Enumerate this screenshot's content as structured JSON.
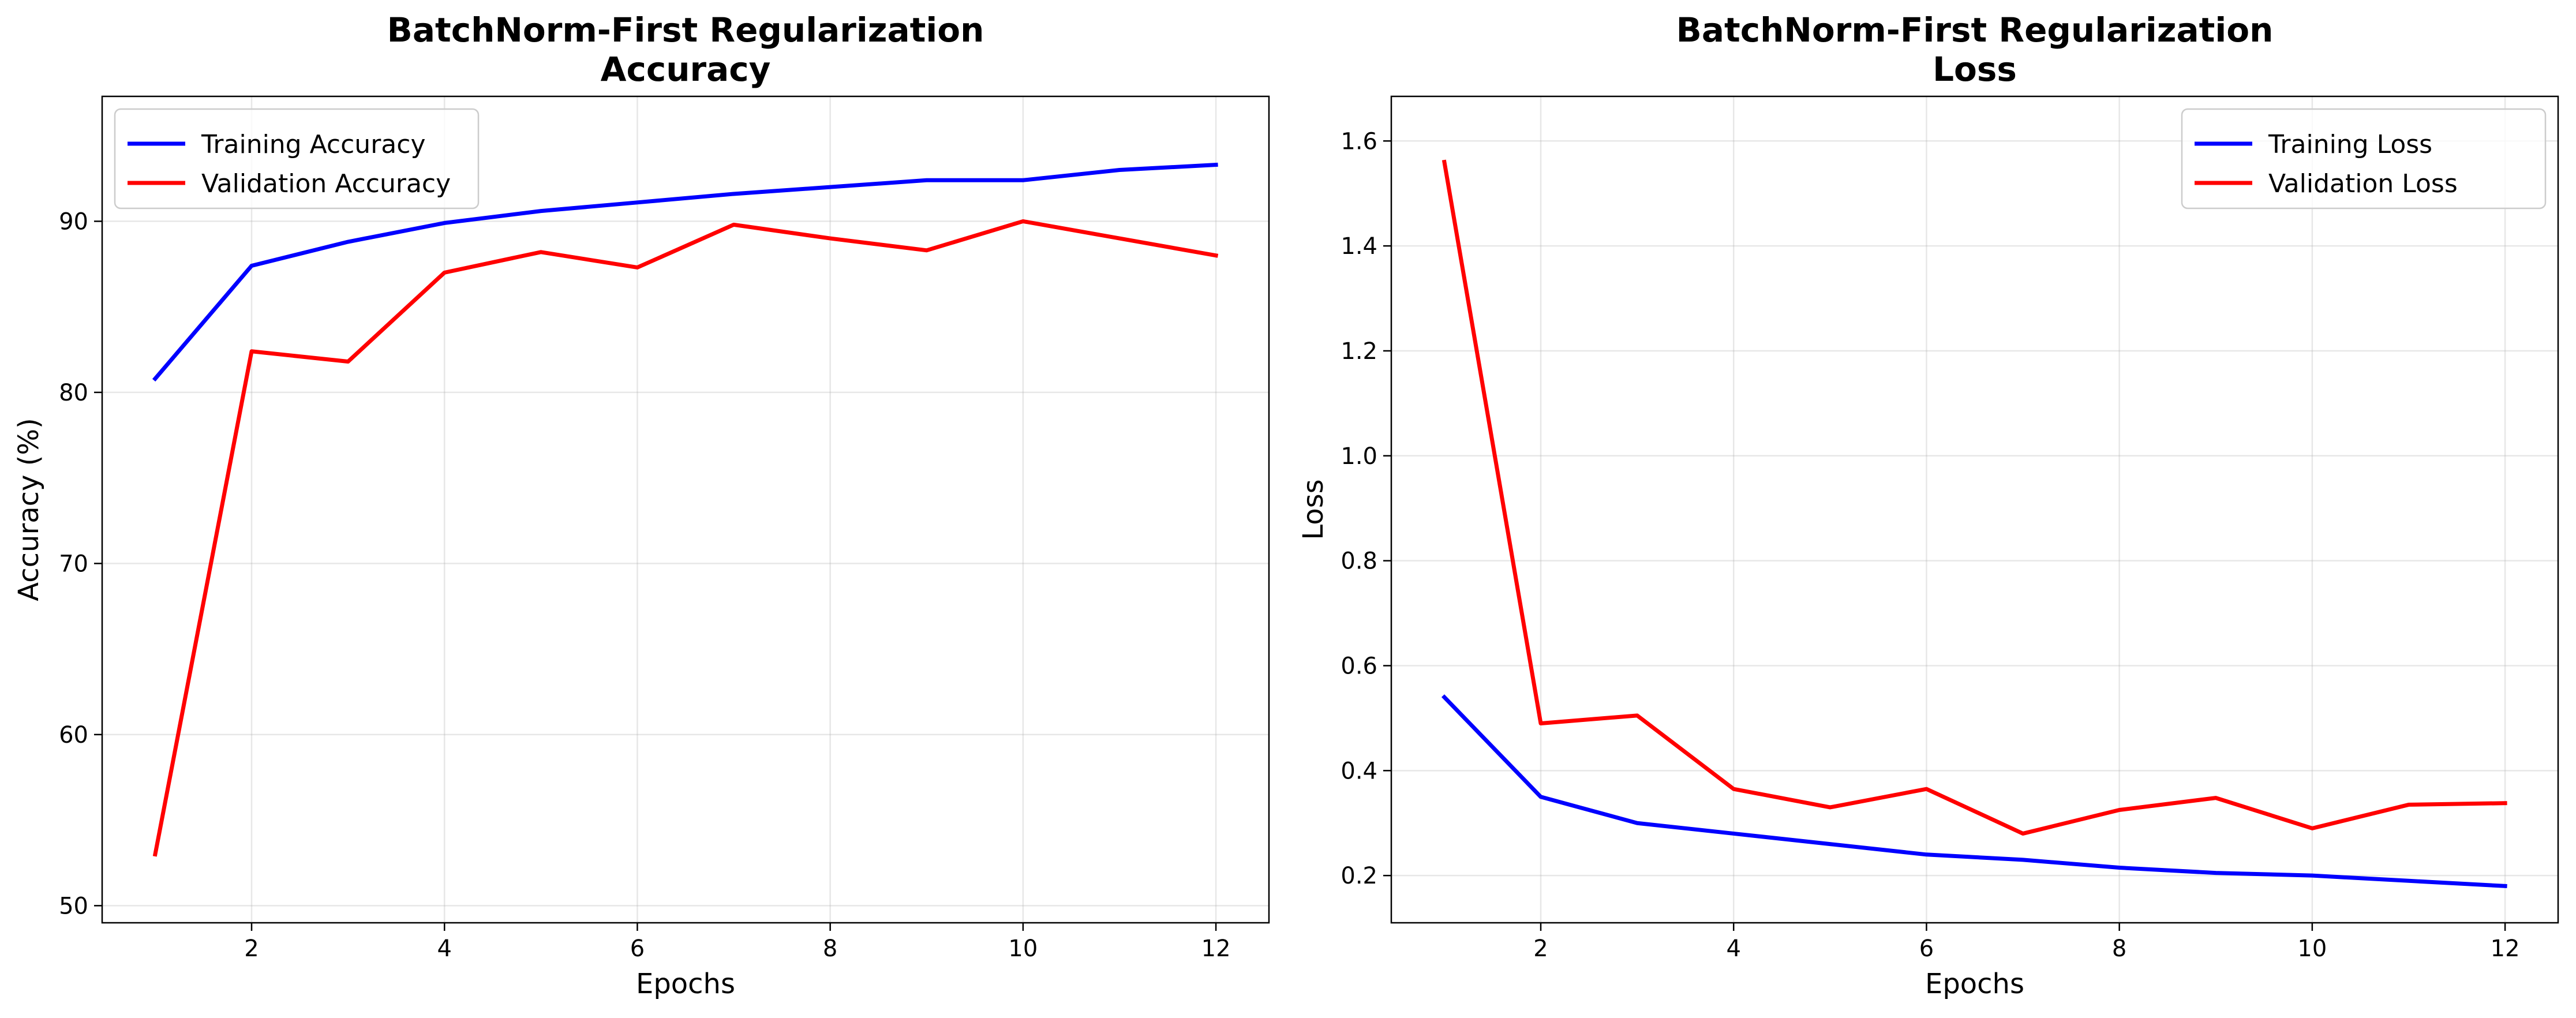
{
  "chart_data": [
    {
      "type": "line",
      "title": "BatchNorm-First Regularization\nAccuracy",
      "xlabel": "Epochs",
      "ylabel": "Accuracy (%)",
      "x": [
        1,
        2,
        3,
        4,
        5,
        6,
        7,
        8,
        9,
        10,
        11,
        12
      ],
      "xlim": [
        0.45,
        12.55
      ],
      "ylim": [
        49.0,
        97.3
      ],
      "xticks": [
        2,
        4,
        6,
        8,
        10,
        12
      ],
      "yticks": [
        50,
        60,
        70,
        80,
        90
      ],
      "xtick_labels": [
        "2",
        "4",
        "6",
        "8",
        "10",
        "12"
      ],
      "ytick_labels": [
        "50",
        "60",
        "70",
        "80",
        "90"
      ],
      "grid": true,
      "legend_loc": "upper left",
      "series": [
        {
          "name": "Training Accuracy",
          "color": "#0000ff",
          "values": [
            80.8,
            87.4,
            88.8,
            89.9,
            90.6,
            91.1,
            91.6,
            92.0,
            92.4,
            92.4,
            93.0,
            93.3
          ]
        },
        {
          "name": "Validation Accuracy",
          "color": "#ff0000",
          "values": [
            53.0,
            82.4,
            81.8,
            87.0,
            88.2,
            87.3,
            89.8,
            89.0,
            88.3,
            90.0,
            89.0,
            88.0
          ]
        }
      ]
    },
    {
      "type": "line",
      "title": "BatchNorm-First Regularization\nLoss",
      "xlabel": "Epochs",
      "ylabel": "Loss",
      "x": [
        1,
        2,
        3,
        4,
        5,
        6,
        7,
        8,
        9,
        10,
        11,
        12
      ],
      "xlim": [
        0.45,
        12.55
      ],
      "ylim": [
        0.11,
        1.685
      ],
      "xticks": [
        2,
        4,
        6,
        8,
        10,
        12
      ],
      "yticks": [
        0.2,
        0.4,
        0.6,
        0.8,
        1.0,
        1.2,
        1.4,
        1.6
      ],
      "xtick_labels": [
        "2",
        "4",
        "6",
        "8",
        "10",
        "12"
      ],
      "ytick_labels": [
        "0.2",
        "0.4",
        "0.6",
        "0.8",
        "1.0",
        "1.2",
        "1.4",
        "1.6"
      ],
      "grid": true,
      "legend_loc": "upper right",
      "series": [
        {
          "name": "Training Loss",
          "color": "#0000ff",
          "values": [
            0.54,
            0.35,
            0.3,
            0.28,
            0.26,
            0.24,
            0.23,
            0.215,
            0.205,
            0.2,
            0.19,
            0.18
          ]
        },
        {
          "name": "Validation Loss",
          "color": "#ff0000",
          "values": [
            1.56,
            0.49,
            0.505,
            0.365,
            0.33,
            0.365,
            0.28,
            0.325,
            0.348,
            0.29,
            0.335,
            0.338
          ]
        }
      ]
    }
  ]
}
